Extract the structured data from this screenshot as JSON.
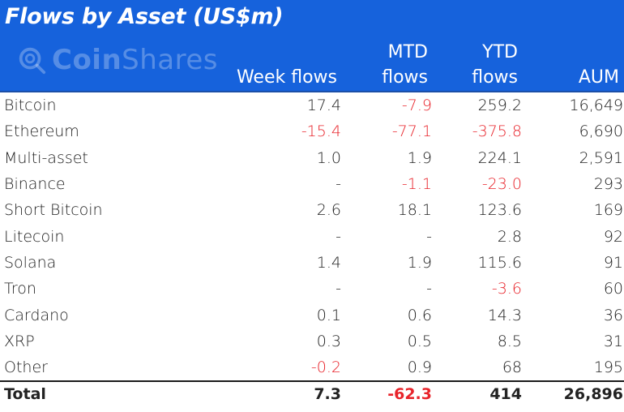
{
  "title": "Flows by Asset (US$m)",
  "logo": {
    "icon": "coinshares-logo-icon",
    "text_bold": "Coin",
    "text_light": "Shares"
  },
  "columns": {
    "week": "Week flows",
    "mtd_line1": "MTD",
    "mtd_line2": "flows",
    "ytd_line1": "YTD",
    "ytd_line2": "flows",
    "aum": "AUM"
  },
  "colors": {
    "header_bg": "#1662dc",
    "negative": "#e8232a",
    "text": "#222222"
  },
  "rows": [
    {
      "asset": "Bitcoin",
      "week": "17.4",
      "mtd": "-7.9",
      "ytd": "259.2",
      "aum": "16,649"
    },
    {
      "asset": "Ethereum",
      "week": "-15.4",
      "mtd": "-77.1",
      "ytd": "-375.8",
      "aum": "6,690"
    },
    {
      "asset": "Multi-asset",
      "week": "1.0",
      "mtd": "1.9",
      "ytd": "224.1",
      "aum": "2,591"
    },
    {
      "asset": "Binance",
      "week": "-",
      "mtd": "-1.1",
      "ytd": "-23.0",
      "aum": "293"
    },
    {
      "asset": "Short Bitcoin",
      "week": "2.6",
      "mtd": "18.1",
      "ytd": "123.6",
      "aum": "169"
    },
    {
      "asset": "Litecoin",
      "week": "-",
      "mtd": "-",
      "ytd": "2.8",
      "aum": "92"
    },
    {
      "asset": "Solana",
      "week": "1.4",
      "mtd": "1.9",
      "ytd": "115.6",
      "aum": "91"
    },
    {
      "asset": "Tron",
      "week": "-",
      "mtd": "-",
      "ytd": "-3.6",
      "aum": "60"
    },
    {
      "asset": "Cardano",
      "week": "0.1",
      "mtd": "0.6",
      "ytd": "14.3",
      "aum": "36"
    },
    {
      "asset": "XRP",
      "week": "0.3",
      "mtd": "0.5",
      "ytd": "8.5",
      "aum": "31"
    },
    {
      "asset": "Other",
      "week": "-0.2",
      "mtd": "0.9",
      "ytd": "68",
      "aum": "195"
    }
  ],
  "total": {
    "asset": "Total",
    "week": "7.3",
    "mtd": "-62.3",
    "ytd": "414",
    "aum": "26,896"
  }
}
